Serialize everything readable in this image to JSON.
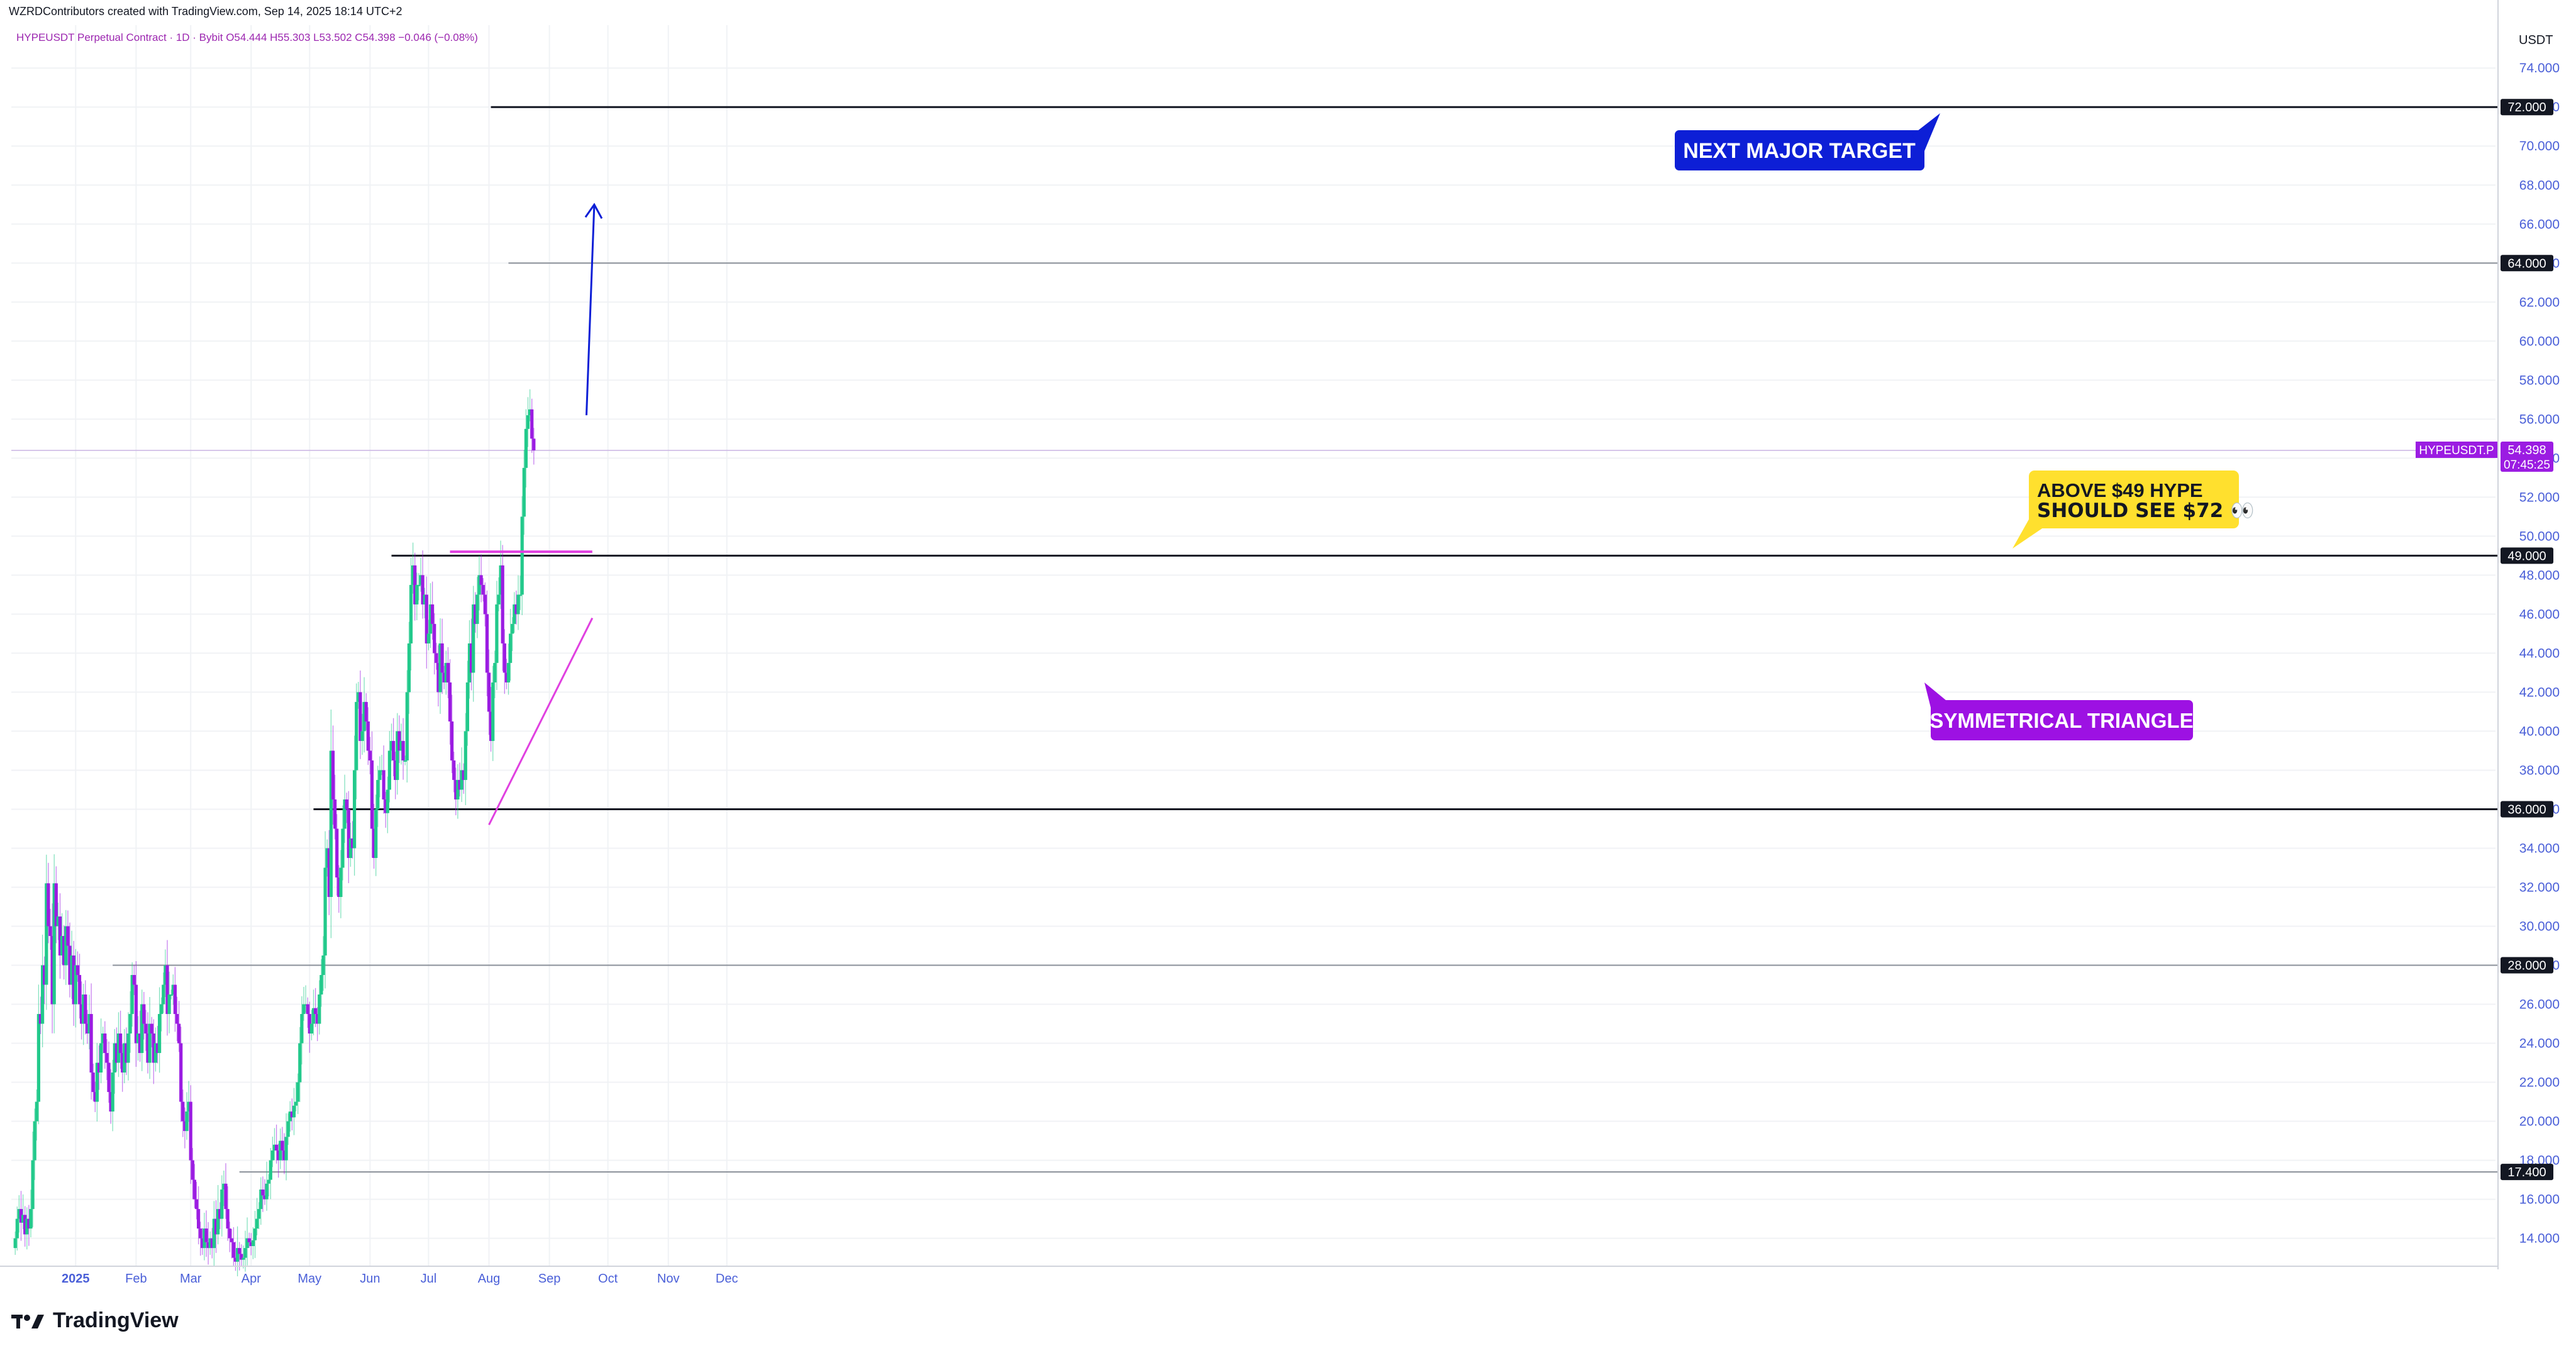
{
  "header": {
    "attribution": "WZRDContributors created with TradingView.com, Sep 14, 2025 18:14 UTC+2",
    "symbol_line": "HYPEUSDT Perpetual Contract · 1D · Bybit  O54.444  H55.303  L53.502  C54.398  −0.046 (−0.08%)"
  },
  "brand": {
    "name": "TradingView",
    "icon": "tradingview-logo-icon"
  },
  "colors": {
    "up": "#22c98b",
    "down": "#9b1ce2",
    "grid": "#f0f2f5",
    "axis_text": "#4a5fd8",
    "pink_line": "#e040e0",
    "blue_label": "#0d1fd6",
    "purple_label": "#9d11e3",
    "yellow_label": "#ffe02e"
  },
  "chart_data": {
    "type": "candlestick",
    "symbol": "HYPEUSDT.P",
    "interval": "1D",
    "exchange": "Bybit",
    "y_unit": "USDT",
    "ylim": [
      12.6,
      76.2
    ],
    "y_ticks": [
      "14.000",
      "16.000",
      "18.000",
      "20.000",
      "22.000",
      "24.000",
      "26.000",
      "28.000",
      "30.000",
      "32.000",
      "34.000",
      "36.000",
      "38.000",
      "40.000",
      "42.000",
      "44.000",
      "46.000",
      "48.000",
      "50.000",
      "52.000",
      "54.000",
      "56.000",
      "58.000",
      "60.000",
      "62.000",
      "64.000",
      "66.000",
      "68.000",
      "70.000",
      "72.000",
      "74.000"
    ],
    "x_start": "2024-11-29",
    "x_end": "2025-12-31",
    "x_ticks": [
      {
        "date": "2025-01-01",
        "label": "2025",
        "bold": true
      },
      {
        "date": "2025-02-01",
        "label": "Feb",
        "bold": false
      },
      {
        "date": "2025-03-01",
        "label": "Mar",
        "bold": false
      },
      {
        "date": "2025-04-01",
        "label": "Apr",
        "bold": false
      },
      {
        "date": "2025-05-01",
        "label": "May",
        "bold": false
      },
      {
        "date": "2025-06-01",
        "label": "Jun",
        "bold": false
      },
      {
        "date": "2025-07-01",
        "label": "Jul",
        "bold": false
      },
      {
        "date": "2025-08-01",
        "label": "Aug",
        "bold": false
      },
      {
        "date": "2025-09-01",
        "label": "Sep",
        "bold": false
      },
      {
        "date": "2025-10-01",
        "label": "Oct",
        "bold": false
      },
      {
        "date": "2025-11-01",
        "label": "Nov",
        "bold": false
      },
      {
        "date": "2025-12-01",
        "label": "Dec",
        "bold": false
      }
    ],
    "candles_start": "2024-12-01",
    "candles_close": [
      14.0,
      15.0,
      15.5,
      14.8,
      15.2,
      14.2,
      15.0,
      14.5,
      15.5,
      18.0,
      20.0,
      21.0,
      25.5,
      25.0,
      28.0,
      27.0,
      32.2,
      30.0,
      29.5,
      26.0,
      32.2,
      30.0,
      30.5,
      28.5,
      29.5,
      28.0,
      30.0,
      29.0,
      27.0,
      28.5,
      26.0,
      28.0,
      27.5,
      26.0,
      25.0,
      26.5,
      25.0,
      24.5,
      25.5,
      22.5,
      21.5,
      21.0,
      23.0,
      22.5,
      24.0,
      24.5,
      23.5,
      23.0,
      21.5,
      20.5,
      22.5,
      24.0,
      23.0,
      24.5,
      23.5,
      22.5,
      24.0,
      23.0,
      24.5,
      25.5,
      27.5,
      27.0,
      24.0,
      24.5,
      23.5,
      26.0,
      25.0,
      24.5,
      23.0,
      25.0,
      24.5,
      23.0,
      24.0,
      23.5,
      25.5,
      26.0,
      27.0,
      28.0,
      25.5,
      26.5,
      26.5,
      27.0,
      25.5,
      25.0,
      24.0,
      21.0,
      20.0,
      19.5,
      20.5,
      21.0,
      18.0,
      17.0,
      16.0,
      15.5,
      14.5,
      14.0,
      13.5,
      14.5,
      13.8,
      13.5,
      14.0,
      13.5,
      15.0,
      14.2,
      15.5,
      15.0,
      16.5,
      16.8,
      15.5,
      14.5,
      14.0,
      13.8,
      13.0,
      12.8,
      13.5,
      13.2,
      12.9,
      13.0,
      13.5,
      14.0,
      13.8,
      13.6,
      13.9,
      14.5,
      15.0,
      15.5,
      16.5,
      16.2,
      16.0,
      16.8,
      17.0,
      18.0,
      18.5,
      18.8,
      18.5,
      18.0,
      19.0,
      18.5,
      18.0,
      19.2,
      20.0,
      20.5,
      20.2,
      20.8,
      21.0,
      22.0,
      24.0,
      25.5,
      26.0,
      26.0,
      25.5,
      24.5,
      25.0,
      25.8,
      25.5,
      25.0,
      26.5,
      27.5,
      28.5,
      33.0,
      34.0,
      31.5,
      39.0,
      36.5,
      35.0,
      32.5,
      31.5,
      33.0,
      35.0,
      36.5,
      36.0,
      33.5,
      34.5,
      34.0,
      38.0,
      41.5,
      42.0,
      39.5,
      40.0,
      41.5,
      40.5,
      39.0,
      38.5,
      35.0,
      33.5,
      36.0,
      37.5,
      38.0,
      38.0,
      36.5,
      35.8,
      37.0,
      39.0,
      39.5,
      38.5,
      37.5,
      40.0,
      39.0,
      39.5,
      38.5,
      38.5,
      42.0,
      44.5,
      47.5,
      48.5,
      46.5,
      47.5,
      47.5,
      48.0,
      46.5,
      47.0,
      44.5,
      45.0,
      46.5,
      45.5,
      44.0,
      43.5,
      42.0,
      44.5,
      43.0,
      42.5,
      43.5,
      42.5,
      40.5,
      38.5,
      37.5,
      36.5,
      37.5,
      37.0,
      38.0,
      37.5,
      40.0,
      42.5,
      44.5,
      43.0,
      46.5,
      45.5,
      47.0,
      48.0,
      47.5,
      47.0,
      46.0,
      43.0,
      41.0,
      39.5,
      42.5,
      43.5,
      46.5,
      47.0,
      48.5,
      44.5,
      43.0,
      42.5,
      43.5,
      45.0,
      45.5,
      46.5,
      46.0,
      47.0,
      47.0,
      51.0,
      53.5,
      55.5,
      56.2,
      56.5,
      55.0,
      54.4
    ]
  },
  "price_tags": [
    {
      "price": 72.0,
      "label": "72.000",
      "line_start": "2025-08-02",
      "style": "black"
    },
    {
      "price": 64.0,
      "label": "64.000",
      "line_start": "2025-08-11",
      "style": "gray"
    },
    {
      "price": 49.0,
      "label": "49.000",
      "line_start": "2025-06-12",
      "style": "black"
    },
    {
      "price": 36.0,
      "label": "36.000",
      "line_start": "2025-05-03",
      "style": "black"
    },
    {
      "price": 28.0,
      "label": "28.000",
      "line_start": "2025-01-20",
      "style": "gray"
    },
    {
      "price": 17.4,
      "label": "17.400",
      "line_start": "2025-03-26",
      "style": "gray"
    }
  ],
  "current_price": {
    "symbol": "HYPEUSDT.P",
    "price": 54.398,
    "label": "54.398",
    "countdown": "07:45:25"
  },
  "annotations": {
    "next_target": "NEXT MAJOR TARGET",
    "above_line1": "ABOVE $49 HYPE",
    "above_line2": "SHOULD SEE $72 👀",
    "triangle": "SYMMETRICAL TRIANGLE"
  },
  "trendlines": {
    "resistance": {
      "price": 49.2,
      "from": "2025-07-12",
      "to": "2025-09-23"
    },
    "support": {
      "from": {
        "date": "2025-08-01",
        "price": 35.2
      },
      "to": {
        "date": "2025-09-23",
        "price": 45.8
      }
    },
    "projection_arrow": {
      "from": {
        "date": "2025-09-20",
        "price": 56.2
      },
      "to": {
        "date": "2025-09-24",
        "price": 67.0
      }
    }
  }
}
